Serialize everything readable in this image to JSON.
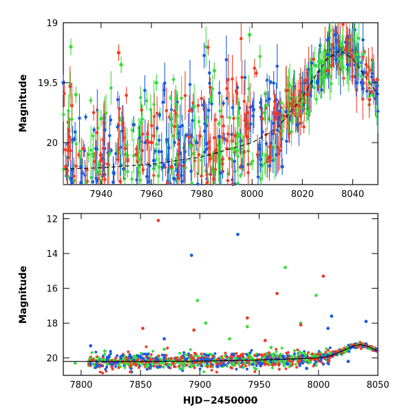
{
  "chart_data": [
    {
      "type": "scatter",
      "ylabel": "Magnitude",
      "xlabel": "",
      "xlim": [
        7925,
        8050
      ],
      "ylim": [
        20.35,
        19.0
      ],
      "y_inverted": true,
      "x_ticks": [
        "7940",
        "7960",
        "7980",
        "8000",
        "8020",
        "8040"
      ],
      "y_ticks": [
        "19",
        "19.5",
        "20"
      ],
      "colors": {
        "green": "#3ddc3d",
        "red": "#f03c28",
        "blue": "#1c5be0",
        "model": "#000000"
      },
      "model_curve": {
        "style": "dashed",
        "x": [
          7925,
          7940,
          7960,
          7980,
          8000,
          8010,
          8020,
          8025,
          8030,
          8035,
          8040,
          8045,
          8050
        ],
        "y": [
          20.22,
          20.21,
          20.18,
          20.12,
          20.0,
          19.88,
          19.62,
          19.45,
          19.3,
          19.23,
          19.3,
          19.45,
          19.6
        ]
      },
      "series": [
        {
          "color": "green",
          "x": [
            7928,
            7930,
            7935,
            7940,
            7948,
            7955,
            7962,
            7970,
            7977,
            7985,
            7992,
            7999,
            8005,
            8012,
            8020,
            8028,
            8035
          ],
          "y": [
            19.2,
            19.6,
            20.1,
            19.8,
            19.35,
            20.2,
            19.5,
            20.15,
            19.7,
            19.4,
            20.05,
            19.1,
            19.75,
            19.9,
            19.65,
            19.45,
            19.3
          ]
        },
        {
          "color": "red",
          "x": [
            7926,
            7933,
            7940,
            7947,
            7954,
            7960,
            7968,
            7975,
            7983,
            7990,
            7998,
            8004,
            8010,
            8016,
            8022,
            8030,
            8040
          ],
          "y": [
            20.2,
            20.05,
            20.15,
            19.25,
            20.1,
            20.0,
            20.2,
            19.95,
            20.1,
            20.05,
            19.95,
            19.8,
            19.75,
            19.7,
            19.6,
            19.4,
            19.45
          ]
        },
        {
          "color": "blue",
          "x": [
            7925,
            7932,
            7938,
            7945,
            7953,
            7961,
            7969,
            7978,
            7987,
            7996,
            8003,
            8012,
            8018,
            8026,
            8033,
            8038,
            8044
          ],
          "y": [
            19.5,
            20.2,
            20.05,
            20.25,
            19.85,
            20.15,
            20.3,
            20.0,
            19.95,
            20.2,
            20.05,
            20.2,
            19.85,
            19.5,
            19.1,
            19.35,
            19.55
          ]
        }
      ]
    },
    {
      "type": "scatter",
      "ylabel": "Magnitude",
      "xlabel": "HJD−2450000",
      "xlim": [
        7785,
        8050
      ],
      "ylim": [
        21.0,
        11.7
      ],
      "y_inverted": true,
      "x_ticks": [
        "7800",
        "7850",
        "7900",
        "7950",
        "8000",
        "8050"
      ],
      "y_ticks": [
        "12",
        "14",
        "16",
        "18",
        "20"
      ],
      "model_curve": {
        "style": "solid",
        "x": [
          7790,
          7850,
          7900,
          7950,
          8000,
          8010,
          8020,
          8030,
          8035,
          8040,
          8050
        ],
        "y": [
          20.2,
          20.2,
          20.18,
          20.12,
          20.0,
          19.88,
          19.6,
          19.3,
          19.23,
          19.3,
          19.6
        ]
      },
      "series": [
        {
          "color": "green",
          "x": [
            7795,
            7820,
            7845,
            7870,
            7898,
            7905,
            7925,
            7940,
            7960,
            7972,
            7985,
            7998,
            8010,
            8025
          ],
          "y": [
            20.3,
            19.6,
            19.9,
            19.5,
            16.7,
            18.0,
            18.9,
            18.2,
            19.4,
            14.8,
            18.0,
            16.4,
            19.7,
            19.5
          ]
        },
        {
          "color": "red",
          "x": [
            7810,
            7835,
            7852,
            7865,
            7880,
            7895,
            7915,
            7935,
            7940,
            7955,
            7965,
            7985,
            8004,
            8020,
            8035
          ],
          "y": [
            20.1,
            20.2,
            18.3,
            12.1,
            20.0,
            18.4,
            20.1,
            19.9,
            17.7,
            19.0,
            16.3,
            18.1,
            15.3,
            19.7,
            19.3
          ]
        },
        {
          "color": "blue",
          "x": [
            7808,
            7830,
            7855,
            7870,
            7893,
            7915,
            7932,
            7950,
            7970,
            7990,
            8008,
            8011,
            8025,
            8040
          ],
          "y": [
            19.3,
            20.3,
            19.8,
            18.9,
            14.1,
            20.5,
            12.9,
            20.3,
            19.9,
            20.6,
            18.3,
            17.6,
            20.2,
            17.9
          ]
        }
      ]
    }
  ]
}
